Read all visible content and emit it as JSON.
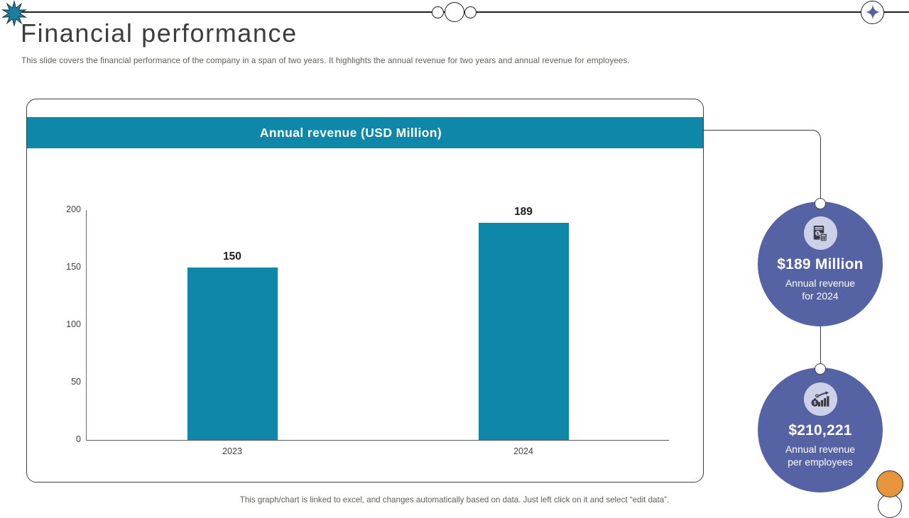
{
  "slide": {
    "title": "Financial performance",
    "subtitle": "This slide covers the financial performance of the company in a span of two years. It highlights the annual revenue for two years and annual revenue for employees.",
    "footer": "This graph/chart is linked to excel, and changes automatically based on data. Just left click on it and select “edit data”."
  },
  "chart_data": {
    "type": "bar",
    "title": "Annual revenue (USD Million)",
    "categories": [
      "2023",
      "2024"
    ],
    "values": [
      150,
      189
    ],
    "data_labels": [
      "150",
      "189"
    ],
    "xlabel": "",
    "ylabel": "",
    "ylim": [
      0,
      200
    ],
    "yticks": [
      0,
      50,
      100,
      150,
      200
    ],
    "grid": false,
    "legend": "none",
    "bar_color": "#0e87a8"
  },
  "callouts": [
    {
      "icon": "invoice-calculator-icon",
      "value": "$189 Million",
      "lines": [
        "Annual revenue",
        "for 2024"
      ]
    },
    {
      "icon": "money-growth-icon",
      "value": "$210,221",
      "lines": [
        "Annual revenue",
        "per employees"
      ]
    }
  ],
  "colors": {
    "accent_teal": "#0e87a8",
    "accent_blue": "#5563a4",
    "accent_orange": "#e8963e",
    "icon_circle_bg": "#cdd1e8",
    "line_dark": "#3f3f3f"
  }
}
